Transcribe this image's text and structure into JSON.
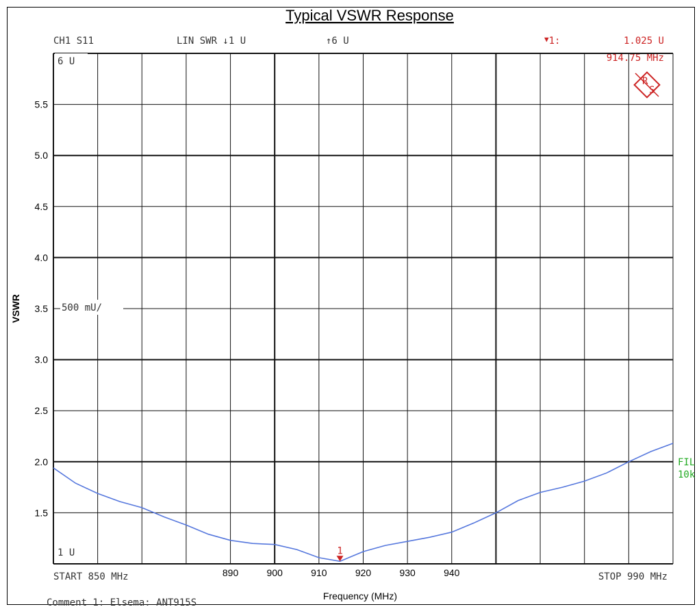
{
  "chart_data": {
    "type": "line",
    "title": "Typical VSWR Response",
    "xlabel": "Frequency (MHz)",
    "ylabel": "VSWR",
    "xlim": [
      850,
      990
    ],
    "ylim": [
      1,
      6
    ],
    "x_ticks": [
      "890",
      "900",
      "910",
      "920",
      "930",
      "940"
    ],
    "y_ticks": [
      "1.5",
      "2.0",
      "2.5",
      "3.0",
      "3.5",
      "4.0",
      "4.5",
      "5.0",
      "5.5"
    ],
    "grid": true,
    "series": [
      {
        "x": [
          850,
          855,
          860,
          865,
          870,
          875,
          880,
          885,
          890,
          895,
          900,
          905,
          910,
          914.75,
          920,
          925,
          930,
          935,
          940,
          945,
          950,
          955,
          960,
          965,
          970,
          975,
          980,
          985,
          990
        ],
        "values": [
          1.94,
          1.79,
          1.69,
          1.61,
          1.55,
          1.46,
          1.38,
          1.29,
          1.23,
          1.2,
          1.19,
          1.14,
          1.06,
          1.025,
          1.12,
          1.18,
          1.22,
          1.26,
          1.31,
          1.4,
          1.5,
          1.62,
          1.7,
          1.75,
          1.81,
          1.89,
          2.0,
          2.1,
          2.18
        ],
        "color": "#5577dd"
      }
    ],
    "marker": {
      "number": "1",
      "x": 914.75,
      "y": 1.025,
      "value_label": "1.025  U",
      "freq_label": "914.75 MHz",
      "index_label": "1:",
      "color": "#cc2222"
    }
  },
  "instrument": {
    "channel": "CH1 S11",
    "format": "LIN SWR ↓1 U",
    "ref": "↑6 U",
    "top_label": "6 U",
    "scale": "500 mU/",
    "bottom_label": "1 U",
    "start": "START  850 MHz",
    "stop": "STOP  990 MHz",
    "filter_line1": "FIL",
    "filter_line2": "10k",
    "comment": "Comment 1: Elsema: ANT915S",
    "logo_letters": [
      "R",
      "S"
    ]
  },
  "colors": {
    "trace": "#5577dd",
    "marker": "#cc2222",
    "filter": "#22aa22"
  }
}
